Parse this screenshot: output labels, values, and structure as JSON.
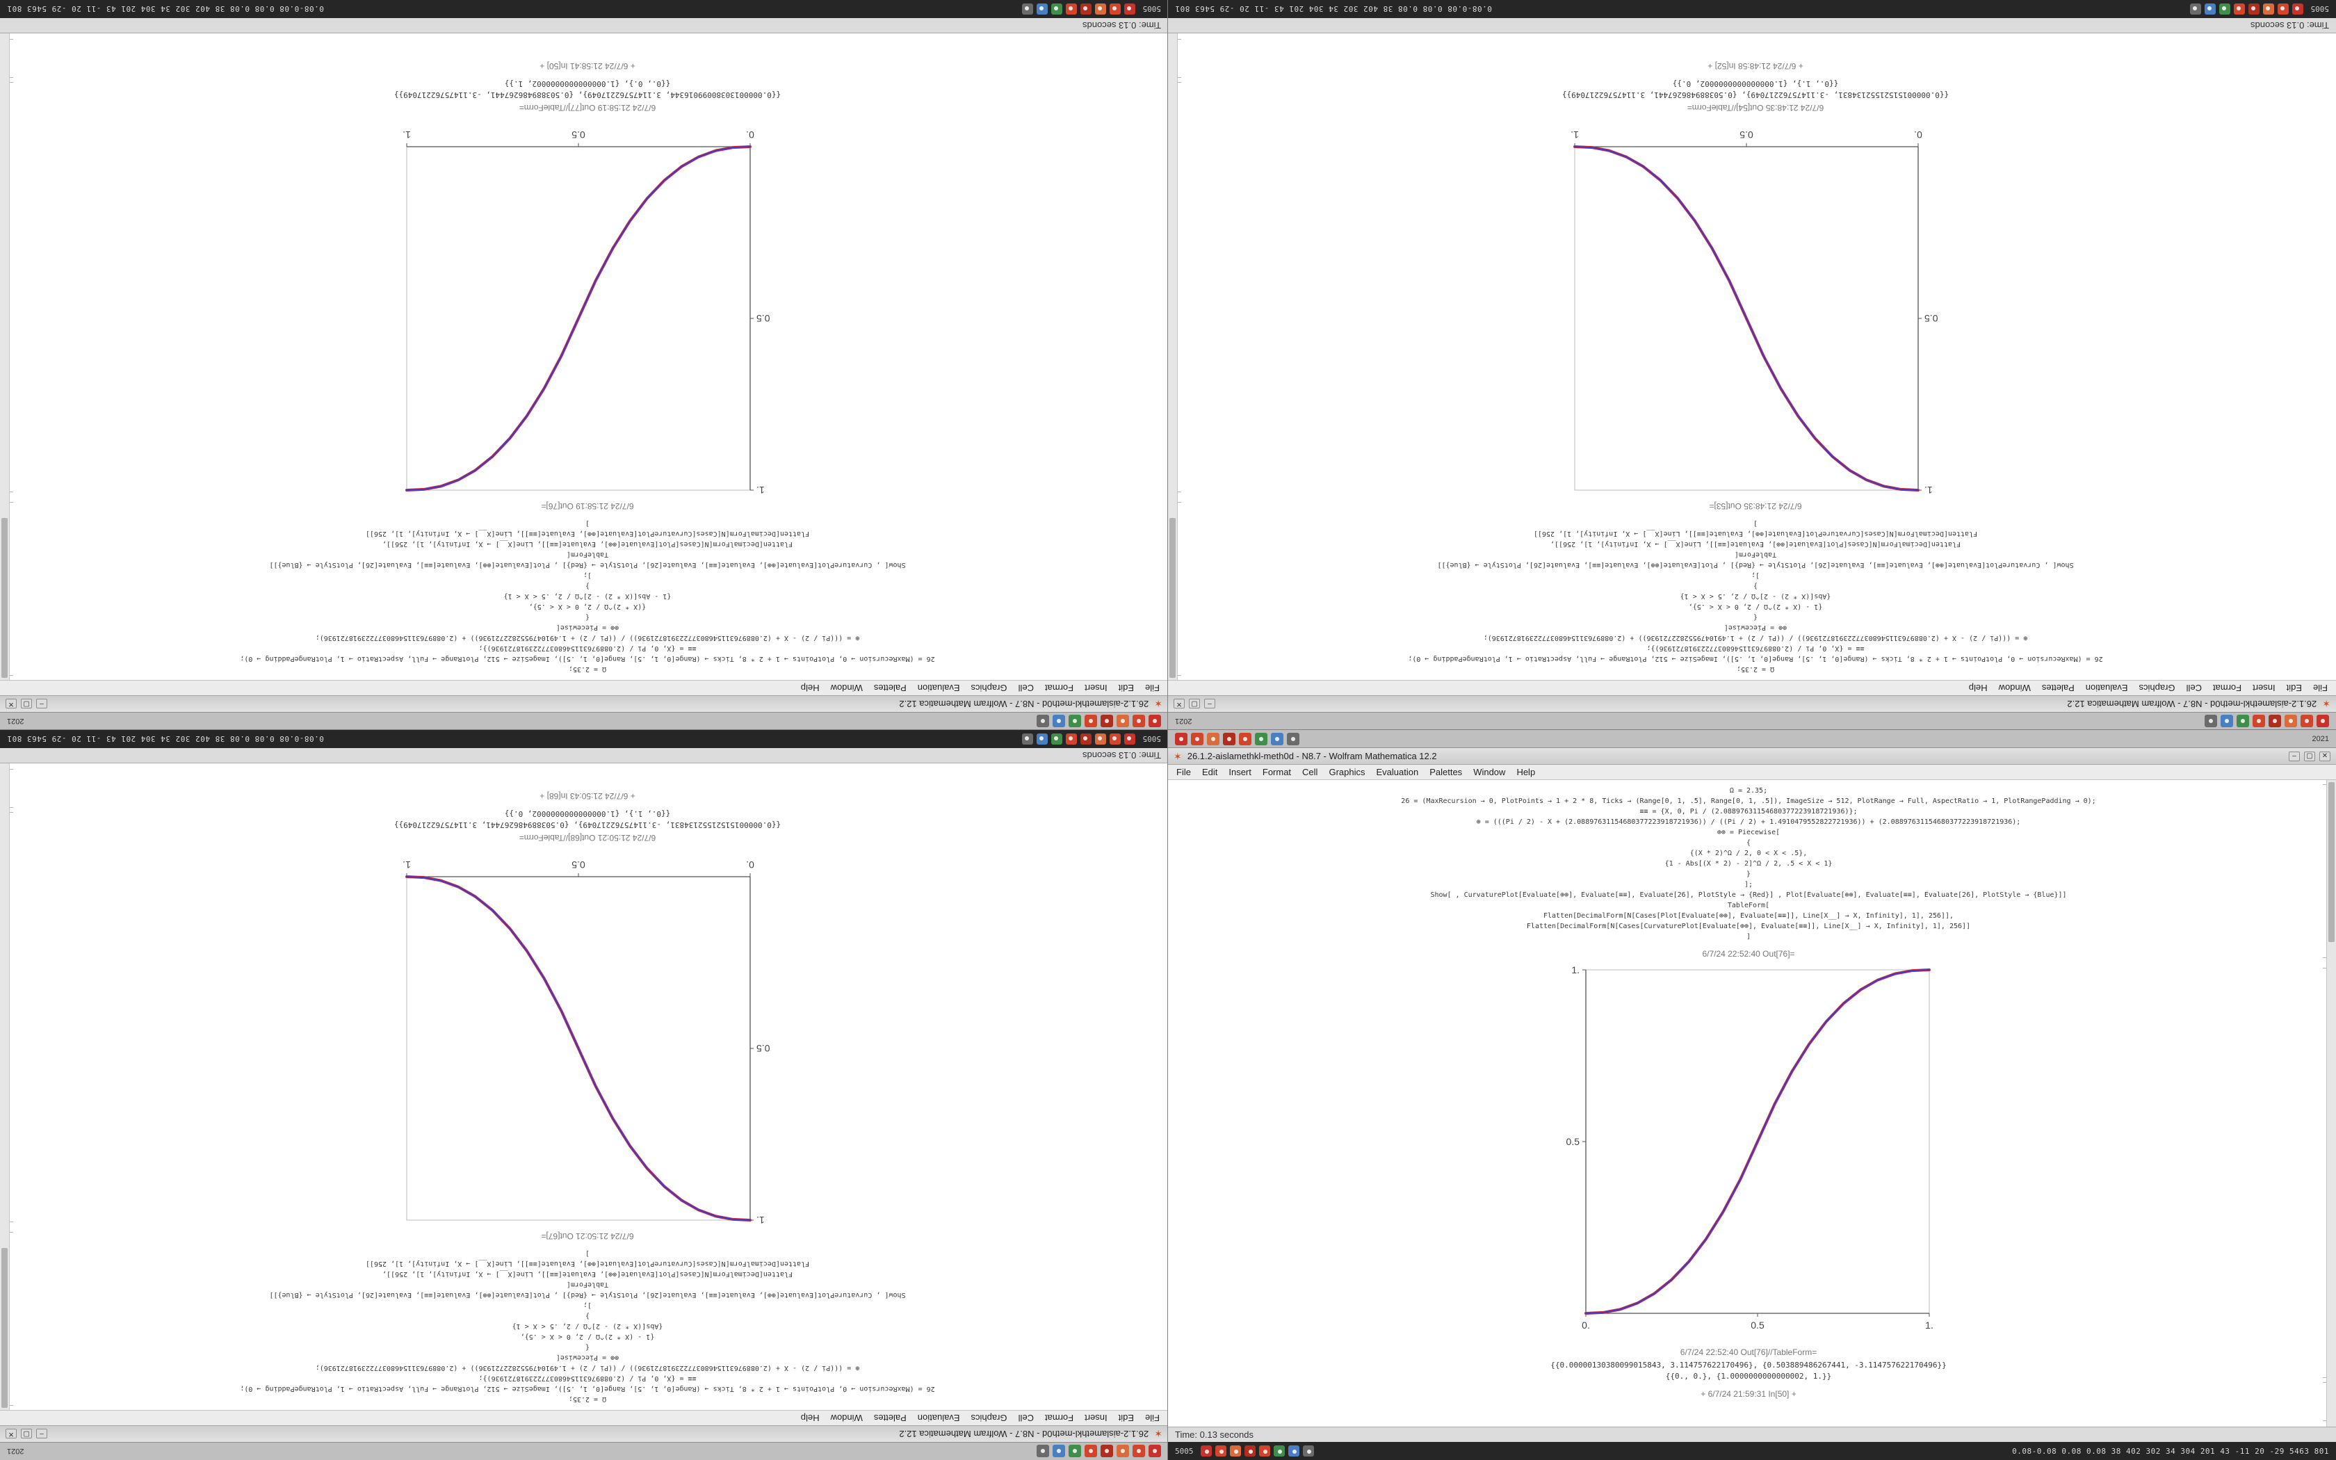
{
  "app": {
    "title": "26.1.2-aislamethkl-meth0d - N8.7 - Wolfram Mathematica 12.2",
    "spikey_icon": "✶",
    "menu": [
      "File",
      "Edit",
      "Insert",
      "Format",
      "Cell",
      "Graphics",
      "Evaluation",
      "Palettes",
      "Window",
      "Help"
    ],
    "window_buttons": {
      "minimize": "–",
      "maximize": "▢",
      "close": "✕"
    },
    "status_time": "Time: 0.13 seconds"
  },
  "taskbar": {
    "top_right_text": "2021",
    "bottom_left_text": "5005",
    "bottom_right_stats": "0.08-0.08 0.08 0.08 38 402 302 34 304 201 43 -11 20 -29 5463 801",
    "icons": [
      {
        "name": "app-icon-red-1",
        "color": "#c8322b"
      },
      {
        "name": "app-icon-red-2",
        "color": "#d2452b"
      },
      {
        "name": "app-icon-orange",
        "color": "#db6b3a"
      },
      {
        "name": "app-icon-red-3",
        "color": "#b02e1d"
      },
      {
        "name": "app-icon-red-4",
        "color": "#d2452b"
      },
      {
        "name": "app-icon-green",
        "color": "#3f8f4a"
      },
      {
        "name": "app-icon-blue",
        "color": "#4a7fc1"
      },
      {
        "name": "app-icon-gray",
        "color": "#6b6b6b"
      }
    ]
  },
  "code_variants": {
    "increasing": [
      "Ω = 2.35;",
      "26 = (MaxRecursion → 0, PlotPoints → 1 + 2 * 8, Ticks → (Range[0, 1, .5], Range[0, 1, .5]), ImageSize → 512, PlotRange → Full, AspectRatio → 1, PlotRangePadding → 0);",
      "≡≡ = {X, 0, Pi / (2.08897631154680377223918721936)};",
      "⊕ = (((Pi / 2) - X + (2.08897631154680377223918721936)) / ((Pi / 2) + 1.4910479552822721936)) + (2.08897631154680377223918721936);",
      "⊕⊕ = Piecewise[",
      "{",
      "{(X * 2)^Ω / 2, 0 < X < .5},",
      "{1 - Abs[(X * 2) - 2]^Ω / 2, .5 < X < 1}",
      "}",
      "];",
      "Show[ , CurvaturePlot[Evaluate[⊕⊕], Evaluate[≡≡], Evaluate[26], PlotStyle → {Red}] , Plot[Evaluate[⊕⊕], Evaluate[≡≡], Evaluate[26], PlotStyle → {Blue}]]",
      "TableForm[",
      "Flatten[DecimalForm[N[Cases[Plot[Evaluate[⊕⊕], Evaluate[≡≡]], Line[X__] → X, Infinity], 1], 256]],",
      "Flatten[DecimalForm[N[Cases[CurvaturePlot[Evaluate[⊕⊕], Evaluate[≡≡]], Line[X__] → X, Infinity], 1], 256]]",
      "]"
    ],
    "decreasing": [
      "Ω = 2.35;",
      "26 = (MaxRecursion → 0, PlotPoints → 1 + 2 * 8, Ticks → (Range[0, 1, .5], Range[0, 1, .5]), ImageSize → 512, PlotRange → Full, AspectRatio → 1, PlotRangePadding → 0);",
      "≡≡ = {X, 0, Pi / (2.08897631154680377223918721936)};",
      "⊕ = (((Pi / 2) - X + (2.08897631154680377223918721936)) / ((Pi / 2) + 1.4910479552822721936)) + (2.08897631154680377223918721936);",
      "⊕⊕ = Piecewise[",
      "{",
      "{1 - (X * 2)^Ω / 2, 0 < X < .5},",
      "{Abs[(X * 2) - 2]^Ω / 2, .5 < X < 1}",
      "}",
      "];",
      "Show[ , CurvaturePlot[Evaluate[⊕⊕], Evaluate[≡≡], Evaluate[26], PlotStyle → {Red}] , Plot[Evaluate[⊕⊕], Evaluate[≡≡], Evaluate[26], PlotStyle → {Blue}]]",
      "TableForm[",
      "Flatten[DecimalForm[N[Cases[Plot[Evaluate[⊕⊕], Evaluate[≡≡]], Line[X__] → X, Infinity], 1], 256]],",
      "Flatten[DecimalForm[N[Cases[CurvaturePlot[Evaluate[⊕⊕], Evaluate[≡≡]], Line[X__] → X, Infinity], 1], 256]]",
      "]"
    ]
  },
  "quadrants": [
    {
      "id": "top-left",
      "rotated": true,
      "variant": "increasing",
      "out_label": "6/7/24 21:58:19 Out[76]=",
      "tableform_label": "6/7/24 21:58:19 Out[77]//TableForm=",
      "table_rows": [
        "{{0.00000130380099016344, 3.11475762217049}, {0.503889486267441, -3.11475762217049}}",
        "{{0., 0.}, {1.0000000000000002, 1.}}"
      ],
      "footer_label": "+ 6/7/24 21:58:41 In[50] +"
    },
    {
      "id": "top-right",
      "rotated": true,
      "variant": "decreasing",
      "out_label": "6/7/24 21:48:35 Out[53]=",
      "tableform_label": "6/7/24 21:48:35 Out[54]//TableForm=",
      "table_rows": [
        "{{0.00000151521552134831, -3.11475762217049}, {0.503889486267441, 3.11475762217049}}",
        "{{0., 1.}, {1.0000000000000002, 0.}}"
      ],
      "footer_label": "+ 6/7/24 21:48:58 In[52] +"
    },
    {
      "id": "bottom-left",
      "rotated": true,
      "variant": "decreasing",
      "out_label": "6/7/24 21:50:21 Out[67]=",
      "tableform_label": "6/7/24 21:50:21 Out[68]//TableForm=",
      "table_rows": [
        "{{0.00000151521552134831, -3.11475762217049}, {0.503889486267441, 3.11475762217049}}",
        "{{0., 1.}, {1.0000000000000002, 0.}}"
      ],
      "footer_label": "+ 6/7/24 21:50:43 In[68] +"
    },
    {
      "id": "bottom-right",
      "rotated": false,
      "variant": "increasing",
      "out_label": "6/7/24 22:52:40 Out[76]=",
      "tableform_label": "6/7/24 22:52:40 Out[76]//TableForm=",
      "table_rows": [
        "{{0.00000130380099015843, 3.114757622170496}, {0.503889486267441, -3.114757622170496}}",
        "{{0., 0.}, {1.0000000000000002, 1.}}"
      ],
      "footer_label": "+ 6/7/24 21:59:31 In[50] +"
    }
  ],
  "chart_data": [
    {
      "type": "line",
      "quadrant": "top-left",
      "title": "Out[76]=",
      "xlabel": "",
      "ylabel": "",
      "xlim": [
        0,
        1
      ],
      "ylim": [
        0,
        1
      ],
      "xticks": [
        0,
        0.5,
        1
      ],
      "xtick_labels": [
        "0.",
        "0.5",
        "1."
      ],
      "yticks": [
        0.5,
        1
      ],
      "ytick_labels": [
        "0.5",
        "1."
      ],
      "grid": false,
      "legend": false,
      "x": [
        0,
        0.05,
        0.1,
        0.15,
        0.2,
        0.25,
        0.3,
        0.35,
        0.4,
        0.45,
        0.5,
        0.55,
        0.6,
        0.65,
        0.7,
        0.75,
        0.8,
        0.85,
        0.9,
        0.95,
        1
      ],
      "series": [
        {
          "name": "CurvaturePlot (Red) and Plot (Blue), overlaid",
          "colors": [
            "#d42a2a",
            "#3a3ad4"
          ],
          "y": [
            0,
            0.0022,
            0.0114,
            0.0295,
            0.058,
            0.0981,
            0.1505,
            0.2163,
            0.296,
            0.3902,
            0.5,
            0.6098,
            0.704,
            0.7837,
            0.8495,
            0.9019,
            0.942,
            0.9705,
            0.9886,
            0.9978,
            1
          ]
        }
      ]
    },
    {
      "type": "line",
      "quadrant": "top-right",
      "title": "Out[53]=",
      "xlabel": "",
      "ylabel": "",
      "xlim": [
        0,
        1
      ],
      "ylim": [
        0,
        1
      ],
      "xticks": [
        0,
        0.5,
        1
      ],
      "xtick_labels": [
        "0.",
        "0.5",
        "1."
      ],
      "yticks": [
        0.5,
        1
      ],
      "ytick_labels": [
        "0.5",
        "1."
      ],
      "grid": false,
      "legend": false,
      "x": [
        0,
        0.05,
        0.1,
        0.15,
        0.2,
        0.25,
        0.3,
        0.35,
        0.4,
        0.45,
        0.5,
        0.55,
        0.6,
        0.65,
        0.7,
        0.75,
        0.8,
        0.85,
        0.9,
        0.95,
        1
      ],
      "series": [
        {
          "name": "CurvaturePlot (Red) and Plot (Blue), overlaid",
          "colors": [
            "#d42a2a",
            "#3a3ad4"
          ],
          "y": [
            1,
            0.9978,
            0.9886,
            0.9705,
            0.942,
            0.9019,
            0.8495,
            0.7837,
            0.704,
            0.6098,
            0.5,
            0.3902,
            0.296,
            0.2163,
            0.1505,
            0.0981,
            0.058,
            0.0295,
            0.0114,
            0.0022,
            0
          ]
        }
      ]
    },
    {
      "type": "line",
      "quadrant": "bottom-left",
      "title": "Out[67]=",
      "xlabel": "",
      "ylabel": "",
      "xlim": [
        0,
        1
      ],
      "ylim": [
        0,
        1
      ],
      "xticks": [
        0,
        0.5,
        1
      ],
      "xtick_labels": [
        "0.",
        "0.5",
        "1."
      ],
      "yticks": [
        0.5,
        1
      ],
      "ytick_labels": [
        "0.5",
        "1."
      ],
      "grid": false,
      "legend": false,
      "x": [
        0,
        0.05,
        0.1,
        0.15,
        0.2,
        0.25,
        0.3,
        0.35,
        0.4,
        0.45,
        0.5,
        0.55,
        0.6,
        0.65,
        0.7,
        0.75,
        0.8,
        0.85,
        0.9,
        0.95,
        1
      ],
      "series": [
        {
          "name": "CurvaturePlot (Red) and Plot (Blue), overlaid",
          "colors": [
            "#d42a2a",
            "#3a3ad4"
          ],
          "y": [
            1,
            0.9978,
            0.9886,
            0.9705,
            0.942,
            0.9019,
            0.8495,
            0.7837,
            0.704,
            0.6098,
            0.5,
            0.3902,
            0.296,
            0.2163,
            0.1505,
            0.0981,
            0.058,
            0.0295,
            0.0114,
            0.0022,
            0
          ]
        }
      ]
    },
    {
      "type": "line",
      "quadrant": "bottom-right",
      "title": "Out[76]=",
      "xlabel": "",
      "ylabel": "",
      "xlim": [
        0,
        1
      ],
      "ylim": [
        0,
        1
      ],
      "xticks": [
        0,
        0.5,
        1
      ],
      "xtick_labels": [
        "0.",
        "0.5",
        "1."
      ],
      "yticks": [
        0.5,
        1
      ],
      "ytick_labels": [
        "0.5",
        "1."
      ],
      "grid": false,
      "legend": false,
      "x": [
        0,
        0.05,
        0.1,
        0.15,
        0.2,
        0.25,
        0.3,
        0.35,
        0.4,
        0.45,
        0.5,
        0.55,
        0.6,
        0.65,
        0.7,
        0.75,
        0.8,
        0.85,
        0.9,
        0.95,
        1
      ],
      "series": [
        {
          "name": "CurvaturePlot (Red) and Plot (Blue), overlaid",
          "colors": [
            "#d42a2a",
            "#3a3ad4"
          ],
          "y": [
            0,
            0.0022,
            0.0114,
            0.0295,
            0.058,
            0.0981,
            0.1505,
            0.2163,
            0.296,
            0.3902,
            0.5,
            0.6098,
            0.704,
            0.7837,
            0.8495,
            0.9019,
            0.942,
            0.9705,
            0.9886,
            0.9978,
            1
          ]
        }
      ]
    }
  ]
}
